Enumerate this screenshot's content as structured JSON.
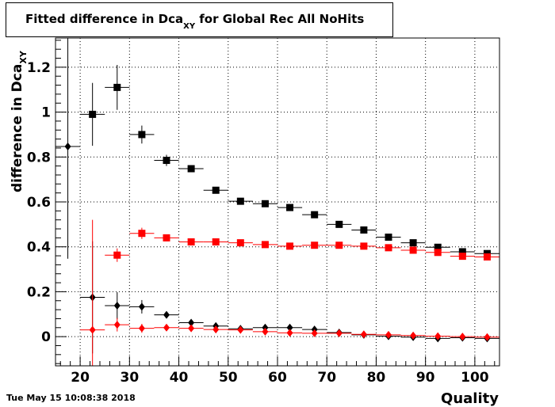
{
  "title": {
    "prefix": "Fitted difference in Dca",
    "sub": "XY",
    "suffix": " for Global Rec All NoHits"
  },
  "timestamp": "Tue May 15 10:08:38 2018",
  "colors": {
    "black": "#000000",
    "red": "#ff0000",
    "grid": "#000000"
  },
  "chart_data": {
    "type": "scatter",
    "title": "Fitted difference in DcaXY for Global Rec All NoHits",
    "xlabel": "Quality",
    "ylabel": "difference in DcaXY",
    "xlim": [
      15,
      105
    ],
    "ylim": [
      -0.13,
      1.33
    ],
    "xticks": [
      20,
      30,
      40,
      50,
      60,
      70,
      80,
      90,
      100
    ],
    "yticks": [
      0,
      0.2,
      0.4,
      0.6,
      0.8,
      1,
      1.2
    ],
    "ytick_labels": [
      "0",
      "0.2",
      "0.4",
      "0.6",
      "0.8",
      "1",
      "1.2"
    ],
    "grid": true,
    "series": [
      {
        "color": "black",
        "marker": "square",
        "points": [
          {
            "x": 22.5,
            "y": 0.99,
            "err": 0.14
          },
          {
            "x": 27.5,
            "y": 1.11,
            "err": 0.1
          },
          {
            "x": 32.5,
            "y": 0.9,
            "err": 0.04
          },
          {
            "x": 37.5,
            "y": 0.785,
            "err": 0.025
          },
          {
            "x": 42.5,
            "y": 0.748,
            "err": 0.015
          },
          {
            "x": 47.5,
            "y": 0.652,
            "err": 0.01
          },
          {
            "x": 52.5,
            "y": 0.603,
            "err": 0.008
          },
          {
            "x": 57.5,
            "y": 0.592,
            "err": 0.008
          },
          {
            "x": 62.5,
            "y": 0.575,
            "err": 0.008
          },
          {
            "x": 67.5,
            "y": 0.543,
            "err": 0.008
          },
          {
            "x": 72.5,
            "y": 0.5,
            "err": 0.008
          },
          {
            "x": 77.5,
            "y": 0.475,
            "err": 0.008
          },
          {
            "x": 82.5,
            "y": 0.443,
            "err": 0.008
          },
          {
            "x": 87.5,
            "y": 0.418,
            "err": 0.008
          },
          {
            "x": 92.5,
            "y": 0.398,
            "err": 0.008
          },
          {
            "x": 97.5,
            "y": 0.378,
            "err": 0.008
          },
          {
            "x": 102.5,
            "y": 0.37,
            "err": 0.008
          }
        ]
      },
      {
        "color": "red",
        "marker": "square",
        "points": [
          {
            "x": 27.5,
            "y": 0.363,
            "err": 0.03
          },
          {
            "x": 32.5,
            "y": 0.46,
            "err": 0.025
          },
          {
            "x": 37.5,
            "y": 0.44,
            "err": 0.015
          },
          {
            "x": 42.5,
            "y": 0.422,
            "err": 0.01
          },
          {
            "x": 47.5,
            "y": 0.422,
            "err": 0.008
          },
          {
            "x": 52.5,
            "y": 0.418,
            "err": 0.008
          },
          {
            "x": 57.5,
            "y": 0.41,
            "err": 0.008
          },
          {
            "x": 62.5,
            "y": 0.403,
            "err": 0.008
          },
          {
            "x": 67.5,
            "y": 0.407,
            "err": 0.008
          },
          {
            "x": 72.5,
            "y": 0.407,
            "err": 0.008
          },
          {
            "x": 77.5,
            "y": 0.403,
            "err": 0.008
          },
          {
            "x": 82.5,
            "y": 0.396,
            "err": 0.008
          },
          {
            "x": 87.5,
            "y": 0.385,
            "err": 0.008
          },
          {
            "x": 92.5,
            "y": 0.375,
            "err": 0.008
          },
          {
            "x": 97.5,
            "y": 0.358,
            "err": 0.008
          },
          {
            "x": 102.5,
            "y": 0.355,
            "err": 0.008
          }
        ]
      },
      {
        "color": "black",
        "marker": "diamond",
        "points": [
          {
            "x": 17.5,
            "y": 0.847,
            "err": 0.5
          },
          {
            "x": 22.5,
            "y": 0.175,
            "err": 0.25
          },
          {
            "x": 27.5,
            "y": 0.138,
            "err": 0.06
          },
          {
            "x": 32.5,
            "y": 0.133,
            "err": 0.03
          },
          {
            "x": 37.5,
            "y": 0.097,
            "err": 0.015
          },
          {
            "x": 42.5,
            "y": 0.062,
            "err": 0.01
          },
          {
            "x": 47.5,
            "y": 0.047,
            "err": 0.008
          },
          {
            "x": 52.5,
            "y": 0.035,
            "err": 0.006
          },
          {
            "x": 57.5,
            "y": 0.04,
            "err": 0.006
          },
          {
            "x": 62.5,
            "y": 0.04,
            "err": 0.006
          },
          {
            "x": 67.5,
            "y": 0.032,
            "err": 0.006
          },
          {
            "x": 72.5,
            "y": 0.018,
            "err": 0.006
          },
          {
            "x": 77.5,
            "y": 0.008,
            "err": 0.006
          },
          {
            "x": 82.5,
            "y": 0.002,
            "err": 0.006
          },
          {
            "x": 87.5,
            "y": -0.002,
            "err": 0.006
          },
          {
            "x": 92.5,
            "y": -0.008,
            "err": 0.006
          },
          {
            "x": 97.5,
            "y": -0.005,
            "err": 0.006
          },
          {
            "x": 102.5,
            "y": -0.008,
            "err": 0.006
          }
        ]
      },
      {
        "color": "red",
        "marker": "diamond",
        "points": [
          {
            "x": 22.5,
            "y": 0.03,
            "err": 0.49
          },
          {
            "x": 27.5,
            "y": 0.053,
            "err": 0.03
          },
          {
            "x": 32.5,
            "y": 0.037,
            "err": 0.02
          },
          {
            "x": 37.5,
            "y": 0.04,
            "err": 0.012
          },
          {
            "x": 42.5,
            "y": 0.037,
            "err": 0.008
          },
          {
            "x": 47.5,
            "y": 0.032,
            "err": 0.006
          },
          {
            "x": 52.5,
            "y": 0.03,
            "err": 0.006
          },
          {
            "x": 57.5,
            "y": 0.022,
            "err": 0.006
          },
          {
            "x": 62.5,
            "y": 0.017,
            "err": 0.006
          },
          {
            "x": 67.5,
            "y": 0.015,
            "err": 0.006
          },
          {
            "x": 72.5,
            "y": 0.015,
            "err": 0.006
          },
          {
            "x": 77.5,
            "y": 0.01,
            "err": 0.006
          },
          {
            "x": 82.5,
            "y": 0.008,
            "err": 0.006
          },
          {
            "x": 87.5,
            "y": 0.005,
            "err": 0.006
          },
          {
            "x": 92.5,
            "y": 0.002,
            "err": 0.006
          },
          {
            "x": 97.5,
            "y": 0.0,
            "err": 0.006
          },
          {
            "x": 102.5,
            "y": -0.002,
            "err": 0.006
          }
        ]
      }
    ]
  }
}
